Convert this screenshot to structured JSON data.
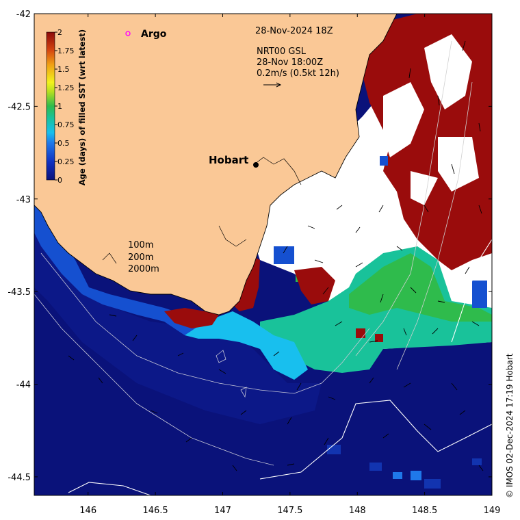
{
  "map": {
    "date_title": "28-Nov-2024 18Z",
    "product_line1": "NRT00 GSL",
    "product_line2": "28-Nov 18:00Z",
    "scale_label": "0.2m/s (0.5kt 12h)",
    "argo_label": "Argo",
    "city_label": "Hobart",
    "depth_labels": [
      "100m",
      "200m",
      "2000m"
    ],
    "copyright": "© IMOS 02-Dec-2024 17:19 Hobart",
    "lat_ticks": [
      "-42",
      "-42.5",
      "-43",
      "-43.5",
      "-44",
      "-44.5"
    ],
    "lon_ticks": [
      "146",
      "146.5",
      "147",
      "147.5",
      "148",
      "148.5",
      "149"
    ]
  },
  "colorbar": {
    "label": "Age (days) of filled SST (wrt latest)",
    "tick_labels": [
      "2",
      "1.75",
      "1.5",
      "1.25",
      "1",
      "0.75",
      "0.5",
      "0.25",
      "0"
    ],
    "range": [
      0,
      2
    ]
  },
  "colors": {
    "land": "#fac896",
    "deep_ocean": "#0a127a",
    "age_2": "#9a0c0c",
    "age_0_5": "#18bfee",
    "age_0_85": "#19c29a",
    "age_1": "#2fbb4c",
    "no_data": "#ffffff"
  },
  "chart_data": {
    "type": "heatmap",
    "x_range": [
      145.6,
      149
    ],
    "y_range": [
      -44.6,
      -42
    ],
    "xlabel": "",
    "ylabel": "",
    "colorbar_range": [
      0,
      2
    ],
    "colorbar_ticks": [
      0,
      0.25,
      0.5,
      0.75,
      1,
      1.25,
      1.5,
      1.75,
      2
    ],
    "city": {
      "name": "Hobart",
      "lon": 147.32,
      "lat": -42.88
    },
    "argo_floats": []
  }
}
